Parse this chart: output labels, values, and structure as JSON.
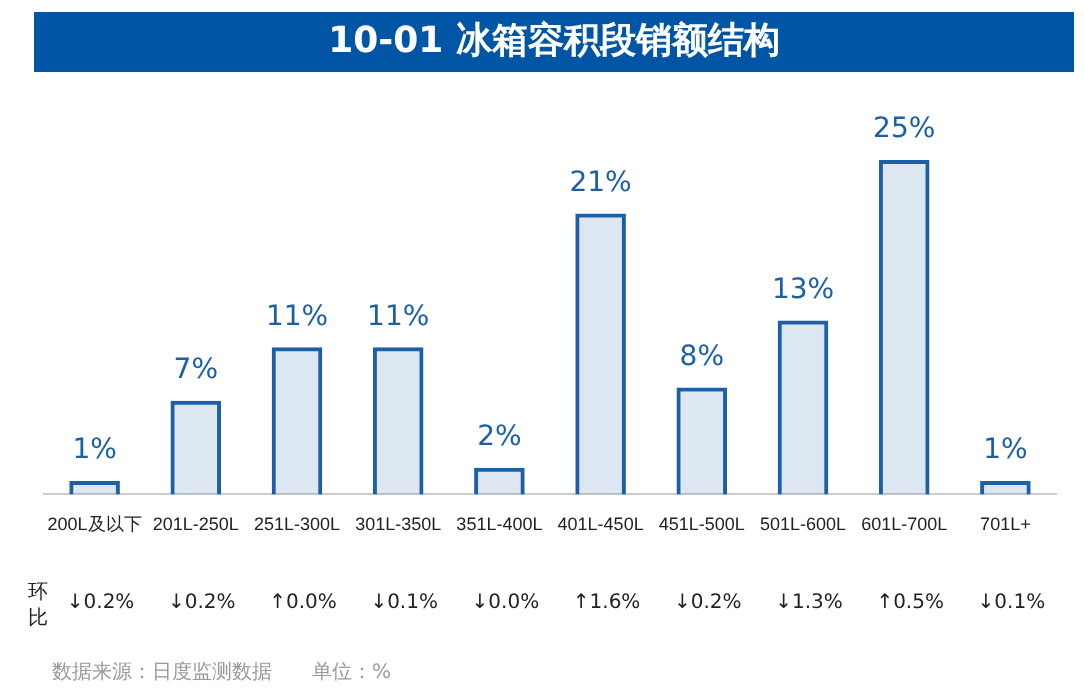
{
  "chart_data": {
    "type": "bar",
    "title": "10-01 冰箱容积段销额结构",
    "categories": [
      "200L及以下",
      "201L-250L",
      "251L-300L",
      "301L-350L",
      "351L-400L",
      "401L-450L",
      "451L-500L",
      "501L-600L",
      "601L-700L",
      "701L+"
    ],
    "values": [
      1,
      7,
      11,
      11,
      2,
      21,
      8,
      13,
      25,
      1
    ],
    "value_labels": [
      "1%",
      "7%",
      "11%",
      "11%",
      "2%",
      "21%",
      "8%",
      "13%",
      "25%",
      "1%"
    ],
    "color": "#1a5fa8",
    "annotations": [
      "环比",
      "↓0.2%",
      "↓0.2%",
      "↑0.0%",
      "↓0.1%",
      "↓0.0%",
      "↑1.6%",
      "↓0.2%",
      "↓1.3%",
      "↑0.5%",
      "↓0.1%",
      "数据来源：日度监测数据",
      "单位：%"
    ],
    "grid": false,
    "legend": false
  }
}
